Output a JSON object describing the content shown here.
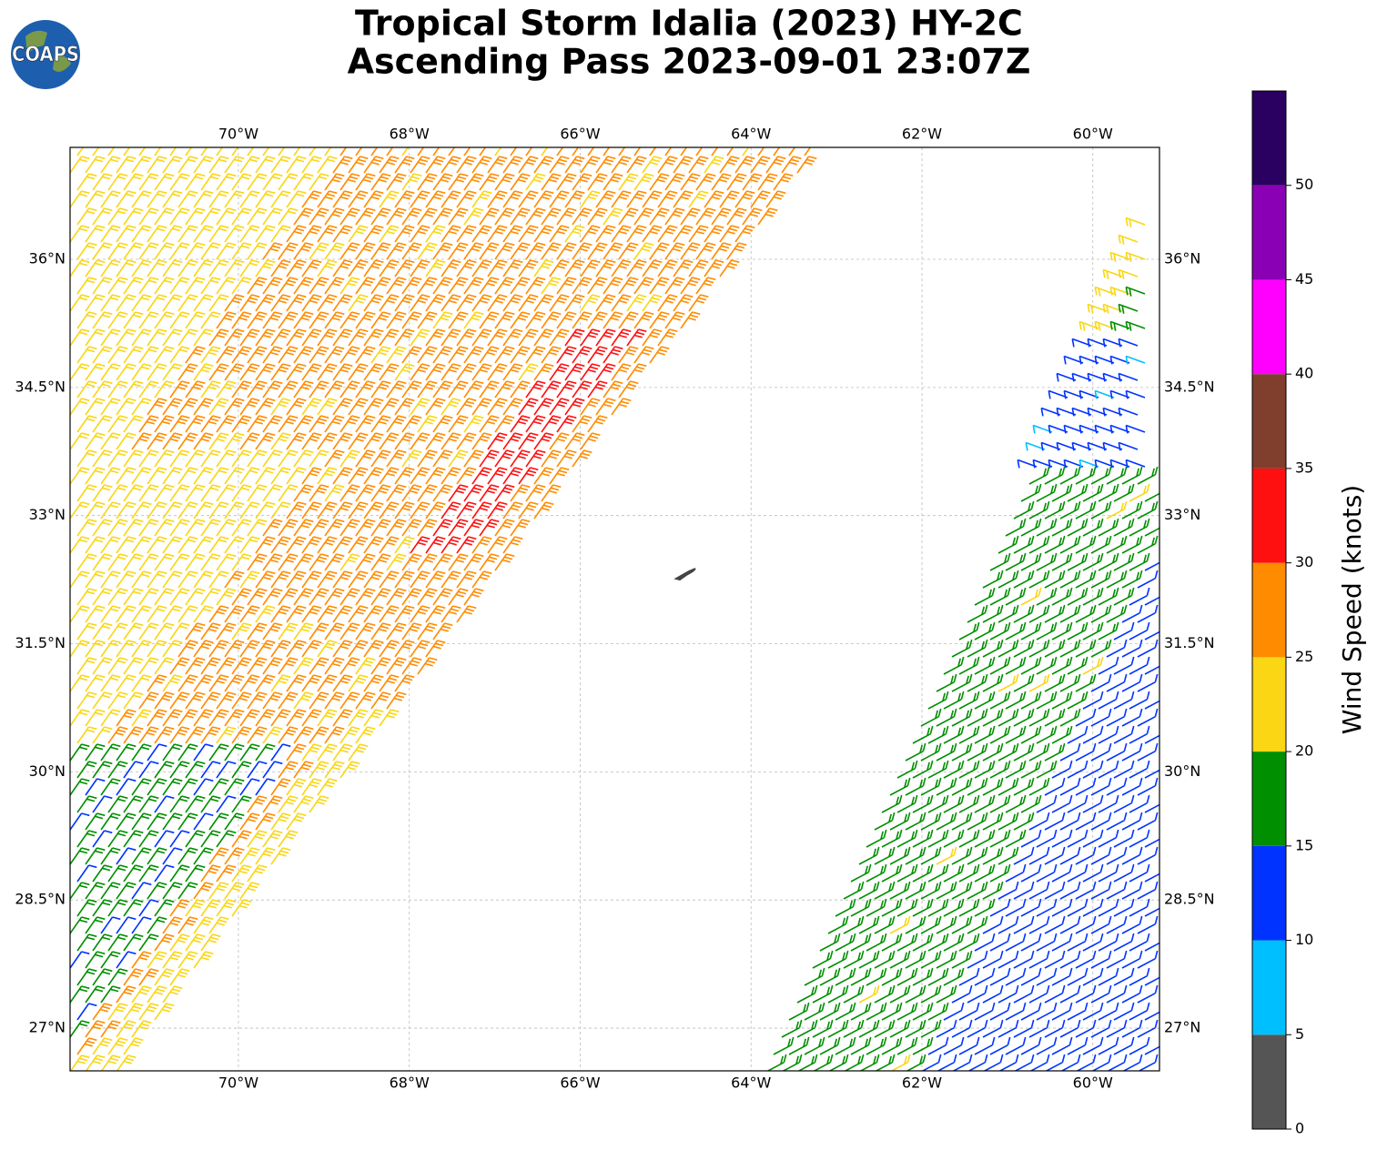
{
  "header": {
    "title_line1": "Tropical Storm Idalia (2023) HY-2C",
    "title_line2": "Ascending Pass 2023-09-01 23:07Z",
    "logo": "COAPS"
  },
  "map": {
    "xlim": [
      -71.97,
      -59.22
    ],
    "ylim": [
      26.5,
      37.31
    ],
    "xticks": [
      {
        "value": -70,
        "label": "70°W"
      },
      {
        "value": -68,
        "label": "68°W"
      },
      {
        "value": -66,
        "label": "66°W"
      },
      {
        "value": -64,
        "label": "64°W"
      },
      {
        "value": -62,
        "label": "62°W"
      },
      {
        "value": -60,
        "label": "60°W"
      }
    ],
    "yticks": [
      {
        "value": 27,
        "label": "27°N"
      },
      {
        "value": 28.5,
        "label": "28.5°N"
      },
      {
        "value": 30,
        "label": "30°N"
      },
      {
        "value": 31.5,
        "label": "31.5°N"
      },
      {
        "value": 33,
        "label": "33°N"
      },
      {
        "value": 34.5,
        "label": "34.5°N"
      },
      {
        "value": 36,
        "label": "36°N"
      }
    ],
    "grid": true
  },
  "colorbar": {
    "label": "Wind Speed (knots)",
    "bins": [
      0,
      5,
      10,
      15,
      20,
      25,
      30,
      35,
      40,
      45,
      50,
      55
    ],
    "colors": [
      "#555555",
      "#00bfff",
      "#0033ff",
      "#008f00",
      "#fad614",
      "#ff8c00",
      "#ff1010",
      "#7f3f2c",
      "#ff00ff",
      "#8a00b4",
      "#2a0060"
    ],
    "ticks": [
      0,
      5,
      10,
      15,
      20,
      25,
      30,
      35,
      40,
      45,
      50
    ]
  }
}
